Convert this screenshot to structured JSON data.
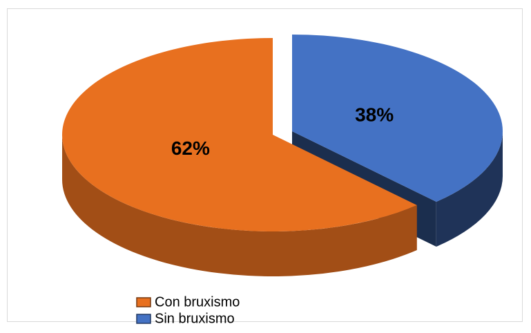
{
  "chart_data": {
    "type": "pie",
    "categories": [
      "Con bruxismo",
      "Sin bruxismo"
    ],
    "values": [
      62,
      38
    ],
    "value_labels": [
      "62%",
      "38%"
    ],
    "colors": [
      "#e8701f",
      "#4472c4"
    ],
    "legend": "bottom"
  }
}
